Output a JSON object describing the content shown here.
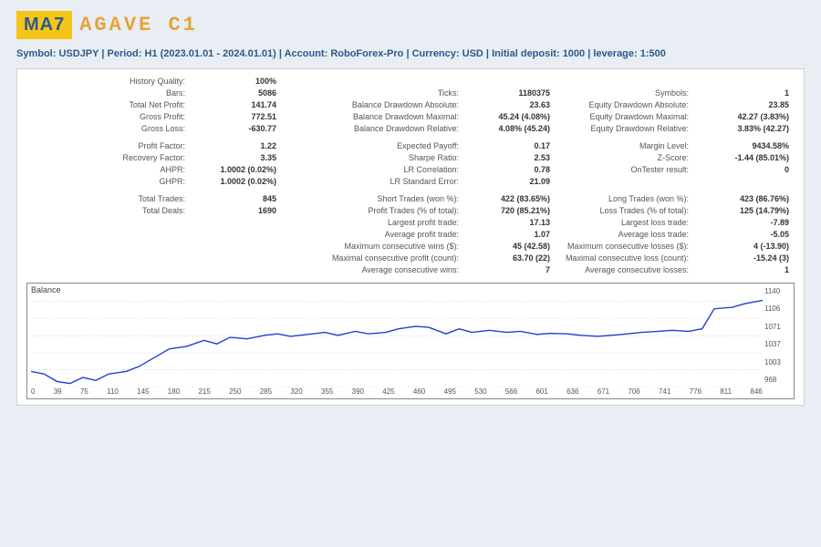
{
  "header": {
    "logo_box": "MA7",
    "logo_text": "AGAVE C1"
  },
  "subheader": {
    "symbol_lbl": "Symbol:",
    "symbol": "USDJPY",
    "period_lbl": "Period:",
    "period": "H1 (2023.01.01 - 2024.01.01)",
    "account_lbl": "Account:",
    "account": "RoboForex-Pro",
    "currency_lbl": "Currency:",
    "currency": "USD",
    "deposit_lbl": "Initial deposit:",
    "deposit": "1000",
    "leverage_lbl": "leverage:",
    "leverage": "1:500",
    "sep": "  |  "
  },
  "stats": {
    "r1": {
      "a_lbl": "History Quality:",
      "a_val": "100%"
    },
    "r2": {
      "a_lbl": "Bars:",
      "a_val": "5086",
      "b_lbl": "Ticks:",
      "b_val": "1180375",
      "c_lbl": "Symbols:",
      "c_val": "1"
    },
    "r3": {
      "a_lbl": "Total Net Profit:",
      "a_val": "141.74",
      "b_lbl": "Balance Drawdown Absolute:",
      "b_val": "23.63",
      "c_lbl": "Equity Drawdown Absolute:",
      "c_val": "23.85"
    },
    "r4": {
      "a_lbl": "Gross Profit:",
      "a_val": "772.51",
      "b_lbl": "Balance Drawdown Maximal:",
      "b_val": "45.24 (4.08%)",
      "c_lbl": "Equity Drawdown Maximal:",
      "c_val": "42.27 (3.83%)"
    },
    "r5": {
      "a_lbl": "Gross Loss:",
      "a_val": "-630.77",
      "b_lbl": "Balance Drawdown Relative:",
      "b_val": "4.08% (45.24)",
      "c_lbl": "Equity Drawdown Relative:",
      "c_val": "3.83% (42.27)"
    },
    "r6": {
      "a_lbl": "Profit Factor:",
      "a_val": "1.22",
      "b_lbl": "Expected Payoff:",
      "b_val": "0.17",
      "c_lbl": "Margin Level:",
      "c_val": "9434.58%"
    },
    "r7": {
      "a_lbl": "Recovery Factor:",
      "a_val": "3.35",
      "b_lbl": "Sharpe Ratio:",
      "b_val": "2.53",
      "c_lbl": "Z-Score:",
      "c_val": "-1.44 (85.01%)"
    },
    "r8": {
      "a_lbl": "AHPR:",
      "a_val": "1.0002 (0.02%)",
      "b_lbl": "LR Correlation:",
      "b_val": "0.78",
      "c_lbl": "OnTester result:",
      "c_val": "0"
    },
    "r9": {
      "a_lbl": "GHPR:",
      "a_val": "1.0002 (0.02%)",
      "b_lbl": "LR Standard Error:",
      "b_val": "21.09"
    },
    "r10": {
      "a_lbl": "Total Trades:",
      "a_val": "845",
      "b_lbl": "Short Trades (won %):",
      "b_val": "422 (83.65%)",
      "c_lbl": "Long Trades (won %):",
      "c_val": "423 (86.76%)"
    },
    "r11": {
      "a_lbl": "Total Deals:",
      "a_val": "1690",
      "b_lbl": "Profit Trades (% of total):",
      "b_val": "720 (85.21%)",
      "c_lbl": "Loss Trades (% of total):",
      "c_val": "125 (14.79%)"
    },
    "r12": {
      "b_lbl": "Largest profit trade:",
      "b_val": "17.13",
      "c_lbl": "Largest loss trade:",
      "c_val": "-7.89"
    },
    "r13": {
      "b_lbl": "Average profit trade:",
      "b_val": "1.07",
      "c_lbl": "Average loss trade:",
      "c_val": "-5.05"
    },
    "r14": {
      "b_lbl": "Maximum consecutive wins ($):",
      "b_val": "45 (42.58)",
      "c_lbl": "Maximum consecutive losses ($):",
      "c_val": "4 (-13.90)"
    },
    "r15": {
      "b_lbl": "Maximal consecutive profit (count):",
      "b_val": "63.70 (22)",
      "c_lbl": "Maximal consecutive loss (count):",
      "c_val": "-15.24 (3)"
    },
    "r16": {
      "b_lbl": "Average consecutive wins:",
      "b_val": "7",
      "c_lbl": "Average consecutive losses:",
      "c_val": "1"
    }
  },
  "chart": {
    "title": "Balance",
    "type": "line",
    "line_color": "#2040d0",
    "background_color": "#ffffff",
    "grid_color": "#cccccc",
    "x_ticks": [
      "0",
      "39",
      "75",
      "110",
      "145",
      "180",
      "215",
      "250",
      "285",
      "320",
      "355",
      "390",
      "425",
      "460",
      "495",
      "530",
      "566",
      "601",
      "636",
      "671",
      "706",
      "741",
      "776",
      "811",
      "846"
    ],
    "y_ticks": [
      "1140",
      "1106",
      "1071",
      "1037",
      "1003",
      "968"
    ],
    "ylim": [
      968,
      1150
    ],
    "xlim": [
      0,
      846
    ],
    "points": [
      [
        0,
        1000
      ],
      [
        15,
        995
      ],
      [
        30,
        980
      ],
      [
        45,
        976
      ],
      [
        60,
        988
      ],
      [
        75,
        982
      ],
      [
        90,
        995
      ],
      [
        110,
        1000
      ],
      [
        125,
        1010
      ],
      [
        145,
        1030
      ],
      [
        160,
        1045
      ],
      [
        180,
        1050
      ],
      [
        200,
        1062
      ],
      [
        215,
        1055
      ],
      [
        230,
        1068
      ],
      [
        250,
        1065
      ],
      [
        270,
        1072
      ],
      [
        285,
        1075
      ],
      [
        300,
        1070
      ],
      [
        320,
        1074
      ],
      [
        340,
        1078
      ],
      [
        355,
        1072
      ],
      [
        375,
        1080
      ],
      [
        390,
        1075
      ],
      [
        410,
        1078
      ],
      [
        425,
        1085
      ],
      [
        445,
        1090
      ],
      [
        460,
        1088
      ],
      [
        480,
        1075
      ],
      [
        495,
        1085
      ],
      [
        510,
        1078
      ],
      [
        530,
        1082
      ],
      [
        550,
        1078
      ],
      [
        566,
        1080
      ],
      [
        585,
        1074
      ],
      [
        601,
        1076
      ],
      [
        620,
        1075
      ],
      [
        636,
        1072
      ],
      [
        655,
        1070
      ],
      [
        671,
        1072
      ],
      [
        690,
        1075
      ],
      [
        706,
        1078
      ],
      [
        725,
        1080
      ],
      [
        741,
        1082
      ],
      [
        760,
        1080
      ],
      [
        776,
        1085
      ],
      [
        790,
        1125
      ],
      [
        811,
        1128
      ],
      [
        825,
        1135
      ],
      [
        846,
        1142
      ]
    ]
  }
}
